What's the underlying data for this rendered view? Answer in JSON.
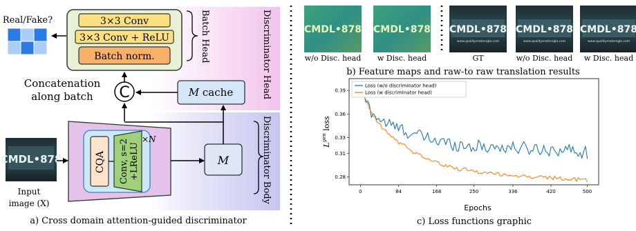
{
  "panel_a": {
    "caption": "a) Cross domain attention-guided discriminator",
    "real_fake_label": "Real/Fake?",
    "batch_head": {
      "title": "Batch Head",
      "layers": [
        "3×3 Conv",
        "3×3 Conv + ReLU",
        "Batch norm."
      ]
    },
    "concat_symbol": "C",
    "concat_label_line1": "Concatenation",
    "concat_label_line2": "along batch",
    "m_cache_italic": "M",
    "m_cache_rest": " cache",
    "discriminator_head_label": "Discriminator Head",
    "discriminator_body_label": "Discriminator Body",
    "cqa_label": "CQA",
    "conv_label_line1": "Conv, s=2",
    "conv_label_line2": "+LReLU",
    "repeat_label": "×N",
    "m_block_label": "M",
    "input_label_line1": "Input",
    "input_label_line2": "image (X)",
    "plate_text": "CMDL•878",
    "colors": {
      "head_bg": "#f3c6ec",
      "body_bg": "#c9c9f1",
      "batch_head_fill": "#e6f1d6",
      "conv_yellow": "#fbe07d",
      "bn_orange": "#f7b068",
      "cache_fill": "#d5e6f9",
      "trapezoid_fill": "#e4c2ea",
      "cqa_container": "#cfe8f8",
      "cqa_fill": "#fde3cc",
      "conv_green": "#9fd07a",
      "m_fill": "#dde7f5"
    }
  },
  "panel_b": {
    "caption": "b) Feature maps and raw-to raw translation results",
    "tiles": [
      {
        "label": "w/o Disc. head",
        "kind": "feature"
      },
      {
        "label": "w Disc. head",
        "kind": "feature"
      },
      {
        "label": "GT",
        "kind": "photo"
      },
      {
        "label": "w/o Disc. head",
        "kind": "photo"
      },
      {
        "label": "w Disc. head",
        "kind": "photo"
      }
    ],
    "plate_text": "CMDL•878",
    "plate_subtext": "www.qualitymotorsgla.com"
  },
  "panel_c": {
    "caption": "c) Loss functions graphic",
    "chart_data": {
      "type": "line",
      "xlabel": "Epochs",
      "ylabel_symbol": "L",
      "ylabel_superscript": "gen",
      "ylabel_suffix": " loss",
      "xticks": [
        0,
        84,
        168,
        250,
        336,
        420,
        500
      ],
      "yticks": [
        0.28,
        0.31,
        0.33,
        0.36,
        0.39
      ],
      "xlim": [
        -25,
        525
      ],
      "ylim": [
        0.27,
        0.405
      ],
      "legend_position": "top-left",
      "series": [
        {
          "name": "Loss (w/o discriminator head)",
          "color": "#1f77b4",
          "anchors": [
            [
              0,
              0.398
            ],
            [
              10,
              0.378
            ],
            [
              25,
              0.362
            ],
            [
              45,
              0.352
            ],
            [
              70,
              0.345
            ],
            [
              100,
              0.338
            ],
            [
              130,
              0.332
            ],
            [
              168,
              0.326
            ],
            [
              200,
              0.322
            ],
            [
              250,
              0.319
            ],
            [
              300,
              0.318
            ],
            [
              336,
              0.317
            ],
            [
              380,
              0.316
            ],
            [
              420,
              0.315
            ],
            [
              460,
              0.314
            ],
            [
              500,
              0.311
            ]
          ],
          "noise": 0.0085
        },
        {
          "name": "Loss (w discriminator head)",
          "color": "#ff7f0e",
          "anchors": [
            [
              0,
              0.398
            ],
            [
              10,
              0.378
            ],
            [
              25,
              0.36
            ],
            [
              45,
              0.344
            ],
            [
              70,
              0.33
            ],
            [
              100,
              0.318
            ],
            [
              130,
              0.308
            ],
            [
              168,
              0.298
            ],
            [
              200,
              0.292
            ],
            [
              250,
              0.287
            ],
            [
              300,
              0.284
            ],
            [
              336,
              0.282
            ],
            [
              380,
              0.28
            ],
            [
              420,
              0.279
            ],
            [
              460,
              0.277
            ],
            [
              500,
              0.276
            ]
          ],
          "noise": 0.0028
        }
      ]
    }
  },
  "divider_color": "#000000"
}
